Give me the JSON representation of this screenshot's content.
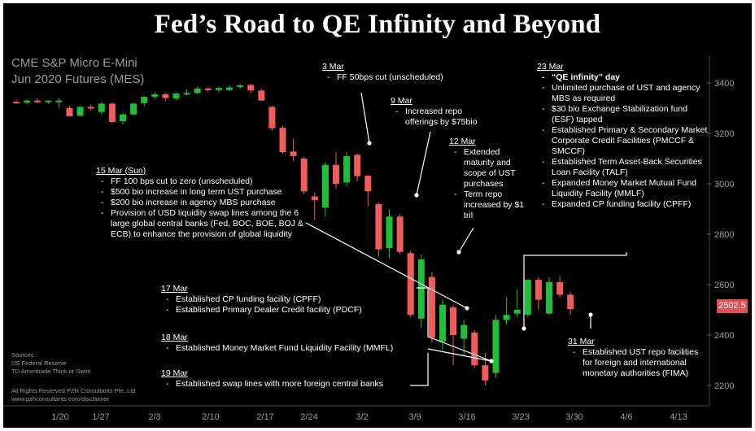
{
  "title": "Fed’s Road to QE Infinity and Beyond",
  "instrument": [
    "CME S&P Micro E-Mini",
    "Jun 2020 Futures (MES)"
  ],
  "last_price": "2502.5",
  "sources": [
    "Sources :",
    "US Federal Reserve",
    "TD Ameritrade Think or Swim"
  ],
  "rights": [
    "All Rights Reserved PZH Consultants Pte. Ltd",
    "www.pzhconsultants.com/disclaimer"
  ],
  "annotations": {
    "mar3": {
      "date": "3 Mar",
      "items": [
        "FF 50bps cut (unscheduled)"
      ]
    },
    "mar9": {
      "date": "9 Mar",
      "items": [
        "Increased repo offerings by $75bio"
      ]
    },
    "mar12": {
      "date": "12 Mar",
      "items": [
        "Extended maturity and scope of UST purchases",
        "Term repo increased by $1 tril"
      ]
    },
    "mar15": {
      "date": "15 Mar (Sun)",
      "items": [
        "FF 100 bps cut to zero (unscheduled)",
        "$500 bio increase in  long term UST purchase",
        "$200 bio increase in agency MBS purchase",
        "Provision of USD liquidity swap lines among the 6 large global central banks (Fed, BOC, BOE, BOJ & ECB) to enhance the provision of global liquidity"
      ]
    },
    "mar17": {
      "date": "17 Mar",
      "items": [
        "Established  CP funding facility (CPFF)",
        "Established  Primary Dealer Credit facility (PDCF)"
      ]
    },
    "mar18": {
      "date": "18 Mar",
      "items": [
        "Established Money Market Fund Liquidity Facility (MMFL)"
      ]
    },
    "mar19": {
      "date": "19 Mar",
      "items": [
        "Established swap lines with more foreign central banks"
      ]
    },
    "mar23": {
      "date": "23 Mar",
      "headline": "“QE infinity” day",
      "items": [
        "Unlimited purchase of UST and agency MBS as required",
        "$30 bio Exchange Stabilization fund (ESF) tapped",
        "Established Primary & Secondary Market Corporate Credit Facilities (PMCCF & SMCCF)",
        "Established Term Asset-Back Securities Loan Facility (TALF)",
        "Expanded Money Market Mutual Fund Liquidity Facility (MMLF)",
        "Expanded CP funding facility (CPFF)"
      ]
    },
    "mar31": {
      "date": "31 Mar",
      "items": [
        "Established UST repo facilities for foreign and international monetary authorities (FIMA)"
      ]
    }
  },
  "colors": {
    "up": "#1fbf3a",
    "down": "#f25c5c",
    "background": "#000000",
    "text": "#ffffff",
    "axis": "#9a9a9a"
  },
  "chart_data": {
    "type": "candlestick",
    "y_ticks": [
      2200,
      2400,
      2600,
      2800,
      3000,
      3200,
      3400
    ],
    "ylim": [
      2140,
      3470
    ],
    "x_ticks": [
      "1/20",
      "1/27",
      "2/3",
      "2/10",
      "2/17",
      "2/24",
      "3/2",
      "3/9",
      "3/16",
      "3/23",
      "3/30",
      "4/6",
      "4/13"
    ],
    "candles": [
      {
        "date": "1/17",
        "o": 3325,
        "h": 3333,
        "l": 3318,
        "c": 3322
      },
      {
        "date": "1/21",
        "o": 3322,
        "h": 3335,
        "l": 3314,
        "c": 3330
      },
      {
        "date": "1/22",
        "o": 3330,
        "h": 3338,
        "l": 3320,
        "c": 3325
      },
      {
        "date": "1/23",
        "o": 3325,
        "h": 3332,
        "l": 3318,
        "c": 3330
      },
      {
        "date": "1/24",
        "o": 3330,
        "h": 3340,
        "l": 3300,
        "c": 3330
      },
      {
        "date": "1/27",
        "o": 3300,
        "h": 3310,
        "l": 3268,
        "c": 3268
      },
      {
        "date": "1/28",
        "o": 3270,
        "h": 3308,
        "l": 3268,
        "c": 3305
      },
      {
        "date": "1/29",
        "o": 3305,
        "h": 3315,
        "l": 3290,
        "c": 3300
      },
      {
        "date": "1/30",
        "o": 3285,
        "h": 3325,
        "l": 3275,
        "c": 3318
      },
      {
        "date": "1/31",
        "o": 3318,
        "h": 3322,
        "l": 3240,
        "c": 3245
      },
      {
        "date": "2/3",
        "o": 3248,
        "h": 3282,
        "l": 3235,
        "c": 3275
      },
      {
        "date": "2/4",
        "o": 3275,
        "h": 3322,
        "l": 3272,
        "c": 3318
      },
      {
        "date": "2/5",
        "o": 3320,
        "h": 3348,
        "l": 3310,
        "c": 3345
      },
      {
        "date": "2/6",
        "o": 3345,
        "h": 3362,
        "l": 3336,
        "c": 3355
      },
      {
        "date": "2/7",
        "o": 3355,
        "h": 3360,
        "l": 3328,
        "c": 3340
      },
      {
        "date": "2/10",
        "o": 3338,
        "h": 3362,
        "l": 3332,
        "c": 3358
      },
      {
        "date": "2/11",
        "o": 3358,
        "h": 3375,
        "l": 3350,
        "c": 3360
      },
      {
        "date": "2/12",
        "o": 3360,
        "h": 3385,
        "l": 3355,
        "c": 3378
      },
      {
        "date": "2/13",
        "o": 3378,
        "h": 3385,
        "l": 3365,
        "c": 3372
      },
      {
        "date": "2/14",
        "o": 3372,
        "h": 3385,
        "l": 3362,
        "c": 3380
      },
      {
        "date": "2/18",
        "o": 3372,
        "h": 3390,
        "l": 3368,
        "c": 3382
      },
      {
        "date": "2/19",
        "o": 3385,
        "h": 3396,
        "l": 3378,
        "c": 3390
      },
      {
        "date": "2/20",
        "o": 3392,
        "h": 3396,
        "l": 3360,
        "c": 3370
      },
      {
        "date": "2/21",
        "o": 3370,
        "h": 3375,
        "l": 3328,
        "c": 3330
      },
      {
        "date": "2/24",
        "o": 3305,
        "h": 3310,
        "l": 3210,
        "c": 3220
      },
      {
        "date": "2/25",
        "o": 3222,
        "h": 3230,
        "l": 3120,
        "c": 3125
      },
      {
        "date": "2/26",
        "o": 3128,
        "h": 3180,
        "l": 3090,
        "c": 3110
      },
      {
        "date": "2/27",
        "o": 3100,
        "h": 3105,
        "l": 2960,
        "c": 2970
      },
      {
        "date": "2/28",
        "o": 2950,
        "h": 2965,
        "l": 2855,
        "c": 2935
      },
      {
        "date": "3/2",
        "o": 2905,
        "h": 3085,
        "l": 2870,
        "c": 3075
      },
      {
        "date": "3/3",
        "o": 3075,
        "h": 3125,
        "l": 2980,
        "c": 3000
      },
      {
        "date": "3/4",
        "o": 3005,
        "h": 3125,
        "l": 2990,
        "c": 3110
      },
      {
        "date": "3/5",
        "o": 3115,
        "h": 3120,
        "l": 3010,
        "c": 3030
      },
      {
        "date": "3/6",
        "o": 3032,
        "h": 3035,
        "l": 2910,
        "c": 2970
      },
      {
        "date": "3/9",
        "o": 2920,
        "h": 2925,
        "l": 2710,
        "c": 2740
      },
      {
        "date": "3/10",
        "o": 2745,
        "h": 2900,
        "l": 2705,
        "c": 2870
      },
      {
        "date": "3/11",
        "o": 2870,
        "h": 2880,
        "l": 2720,
        "c": 2730
      },
      {
        "date": "3/12",
        "o": 2725,
        "h": 2735,
        "l": 2470,
        "c": 2480
      },
      {
        "date": "3/13",
        "o": 2465,
        "h": 2720,
        "l": 2430,
        "c": 2700
      },
      {
        "date": "3/16",
        "o": 2630,
        "h": 2650,
        "l": 2370,
        "c": 2390
      },
      {
        "date": "3/17",
        "o": 2375,
        "h": 2540,
        "l": 2340,
        "c": 2520
      },
      {
        "date": "3/18",
        "o": 2510,
        "h": 2520,
        "l": 2280,
        "c": 2400
      },
      {
        "date": "3/19",
        "o": 2385,
        "h": 2460,
        "l": 2320,
        "c": 2440
      },
      {
        "date": "3/20",
        "o": 2410,
        "h": 2420,
        "l": 2270,
        "c": 2280
      },
      {
        "date": "3/22",
        "o": 2280,
        "h": 2330,
        "l": 2200,
        "c": 2220
      },
      {
        "date": "3/23",
        "o": 2250,
        "h": 2480,
        "l": 2230,
        "c": 2460
      },
      {
        "date": "3/24",
        "o": 2460,
        "h": 2550,
        "l": 2440,
        "c": 2480
      },
      {
        "date": "3/25",
        "o": 2485,
        "h": 2580,
        "l": 2470,
        "c": 2500
      },
      {
        "date": "3/26",
        "o": 2480,
        "h": 2620,
        "l": 2470,
        "c": 2620
      },
      {
        "date": "3/27",
        "o": 2620,
        "h": 2630,
        "l": 2500,
        "c": 2540
      },
      {
        "date": "3/30",
        "o": 2485,
        "h": 2630,
        "l": 2480,
        "c": 2610
      },
      {
        "date": "3/31",
        "o": 2610,
        "h": 2635,
        "l": 2550,
        "c": 2560
      },
      {
        "date": "4/1",
        "o": 2560,
        "h": 2570,
        "l": 2480,
        "c": 2502.5
      }
    ]
  }
}
